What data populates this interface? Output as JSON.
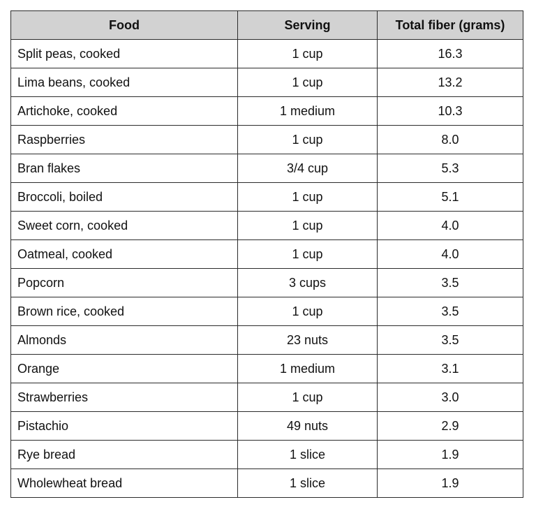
{
  "table": {
    "headers": {
      "food": "Food",
      "serving": "Serving",
      "fiber": "Total fiber (grams)"
    },
    "rows": [
      {
        "food": "Split peas, cooked",
        "serving": "1 cup",
        "fiber": "16.3"
      },
      {
        "food": "Lima beans, cooked",
        "serving": "1 cup",
        "fiber": "13.2"
      },
      {
        "food": "Artichoke, cooked",
        "serving": "1 medium",
        "fiber": "10.3"
      },
      {
        "food": "Raspberries",
        "serving": "1 cup",
        "fiber": "8.0"
      },
      {
        "food": "Bran flakes",
        "serving": "3/4 cup",
        "fiber": "5.3"
      },
      {
        "food": "Broccoli, boiled",
        "serving": "1 cup",
        "fiber": "5.1"
      },
      {
        "food": "Sweet corn, cooked",
        "serving": "1 cup",
        "fiber": "4.0"
      },
      {
        "food": "Oatmeal, cooked",
        "serving": "1 cup",
        "fiber": "4.0"
      },
      {
        "food": "Popcorn",
        "serving": "3 cups",
        "fiber": "3.5"
      },
      {
        "food": "Brown rice, cooked",
        "serving": "1 cup",
        "fiber": "3.5"
      },
      {
        "food": "Almonds",
        "serving": "23 nuts",
        "fiber": "3.5"
      },
      {
        "food": "Orange",
        "serving": "1 medium",
        "fiber": "3.1"
      },
      {
        "food": "Strawberries",
        "serving": "1 cup",
        "fiber": "3.0"
      },
      {
        "food": "Pistachio",
        "serving": "49 nuts",
        "fiber": "2.9"
      },
      {
        "food": "Rye bread",
        "serving": "1 slice",
        "fiber": "1.9"
      },
      {
        "food": "Wholewheat bread",
        "serving": "1 slice",
        "fiber": "1.9"
      }
    ],
    "colors": {
      "header_background": "#d2d2d2",
      "border": "#2b2b2b",
      "text": "#111111"
    }
  }
}
